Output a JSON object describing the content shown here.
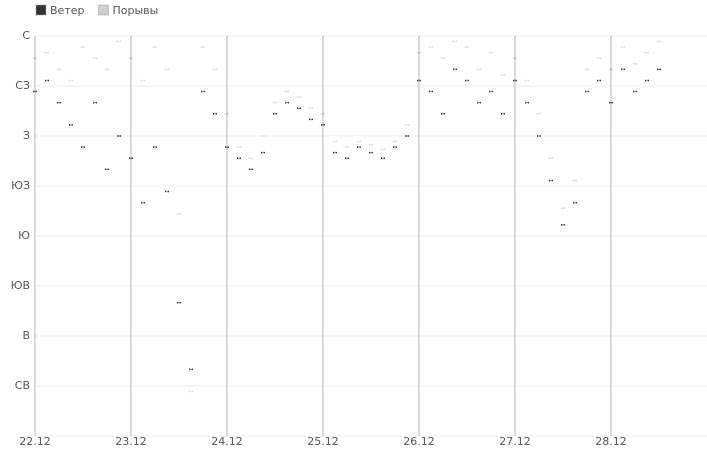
{
  "chart_data": {
    "type": "scatter",
    "x": [
      0,
      0.125,
      0.25,
      0.375,
      0.5,
      0.625,
      0.75,
      0.875,
      1,
      1.125,
      1.25,
      1.375,
      1.5,
      1.625,
      1.75,
      1.875,
      2,
      2.125,
      2.25,
      2.375,
      2.5,
      2.625,
      2.75,
      2.875,
      3,
      3.125,
      3.25,
      3.375,
      3.5,
      3.625,
      3.75,
      3.875,
      4,
      4.125,
      4.25,
      4.375,
      4.5,
      4.625,
      4.75,
      4.875,
      5,
      5.125,
      5.25,
      5.375,
      5.5,
      5.625,
      5.75,
      5.875,
      6,
      6.125,
      6.25,
      6.375,
      6.5
    ],
    "series": [
      {
        "name": "Ветер",
        "color": "#333333",
        "values": [
          310,
          320,
          300,
          280,
          260,
          300,
          240,
          270,
          250,
          210,
          260,
          220,
          120,
          60,
          310,
          290,
          260,
          250,
          240,
          255,
          290,
          300,
          295,
          285,
          280,
          255,
          250,
          260,
          255,
          250,
          260,
          270,
          320,
          310,
          290,
          330,
          320,
          300,
          310,
          290,
          320,
          300,
          270,
          230,
          190,
          210,
          310,
          320,
          300,
          330,
          310,
          320,
          330
        ]
      },
      {
        "name": "Порывы",
        "color": "#d0d0d0",
        "values": [
          340,
          345,
          330,
          320,
          350,
          340,
          330,
          355,
          340,
          320,
          350,
          330,
          200,
          40,
          350,
          330,
          290,
          260,
          250,
          270,
          300,
          310,
          305,
          295,
          290,
          265,
          260,
          265,
          262,
          258,
          265,
          280,
          345,
          350,
          340,
          355,
          350,
          330,
          345,
          325,
          340,
          320,
          290,
          250,
          205,
          230,
          330,
          340,
          330,
          350,
          335,
          345,
          355
        ]
      }
    ],
    "xlim": [
      0,
      7
    ],
    "xticks": [
      {
        "value": 0,
        "label": "22.12"
      },
      {
        "value": 1,
        "label": "23.12"
      },
      {
        "value": 2,
        "label": "24.12"
      },
      {
        "value": 3,
        "label": "25.12"
      },
      {
        "value": 4,
        "label": "26.12"
      },
      {
        "value": 5,
        "label": "27.12"
      },
      {
        "value": 6,
        "label": "28.12"
      }
    ],
    "ylim": [
      0,
      360
    ],
    "yticks": [
      {
        "value": 360,
        "label": "С"
      },
      {
        "value": 315,
        "label": "СЗ"
      },
      {
        "value": 270,
        "label": "З"
      },
      {
        "value": 225,
        "label": "ЮЗ"
      },
      {
        "value": 180,
        "label": "Ю"
      },
      {
        "value": 135,
        "label": "ЮВ"
      },
      {
        "value": 90,
        "label": "В"
      },
      {
        "value": 45,
        "label": "СВ"
      }
    ],
    "grid": true
  }
}
